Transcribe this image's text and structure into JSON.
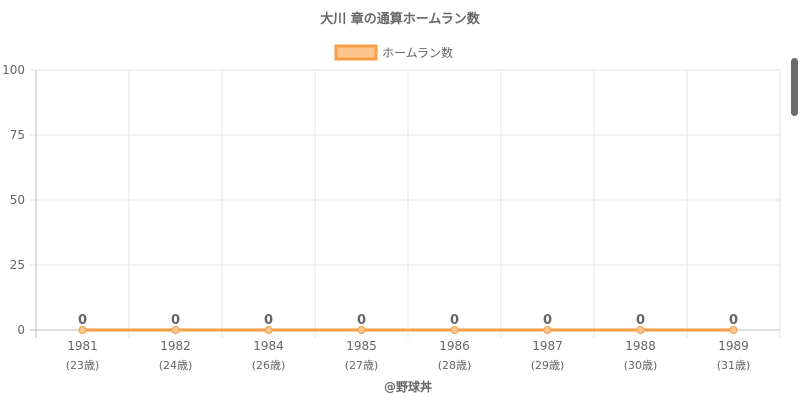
{
  "chart_data": {
    "type": "line",
    "title": "大川 章の通算ホームラン数",
    "legend": {
      "label": "ホームラン数",
      "placement": "top-center"
    },
    "categories": [
      "1981",
      "1982",
      "1984",
      "1985",
      "1986",
      "1987",
      "1988",
      "1989"
    ],
    "category_sublabels": [
      "(23歳)",
      "(24歳)",
      "(26歳)",
      "(27歳)",
      "(28歳)",
      "(29歳)",
      "(30歳)",
      "(31歳)"
    ],
    "series": [
      {
        "name": "ホームラン数",
        "values": [
          0,
          0,
          0,
          0,
          0,
          0,
          0,
          0
        ]
      }
    ],
    "data_labels": [
      "0",
      "0",
      "0",
      "0",
      "0",
      "0",
      "0",
      "0"
    ],
    "yticks": [
      0,
      25,
      50,
      75,
      100
    ],
    "ylim": [
      0,
      100
    ],
    "grid": true,
    "colors": {
      "line": "#f79d45",
      "fill": "#fbc58e",
      "grid": "#e6e6e6",
      "axis": "#bdbdbd",
      "text": "#666666"
    }
  },
  "credit": "@野球丼"
}
